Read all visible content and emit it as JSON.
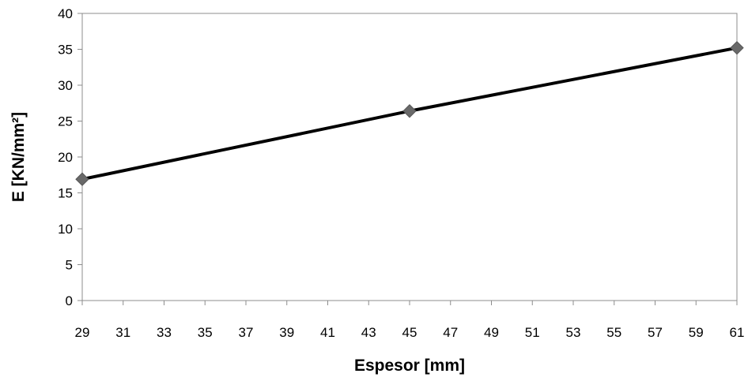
{
  "chart_data": {
    "type": "line",
    "title": "",
    "xlabel": "Espesor [mm]",
    "ylabel": "E [KN/mm²]",
    "xlim": [
      29,
      61
    ],
    "ylim": [
      0,
      40
    ],
    "x_ticks": [
      29,
      31,
      33,
      35,
      37,
      39,
      41,
      43,
      45,
      47,
      49,
      51,
      53,
      55,
      57,
      59,
      61
    ],
    "y_ticks": [
      0,
      5,
      10,
      15,
      20,
      25,
      30,
      35,
      40
    ],
    "grid": false,
    "legend": "none",
    "series": [
      {
        "x": [
          29,
          45,
          61
        ],
        "y": [
          16.9,
          26.4,
          35.2
        ],
        "line_color": "#000000",
        "marker": "diamond",
        "marker_color": "#696969"
      }
    ]
  }
}
